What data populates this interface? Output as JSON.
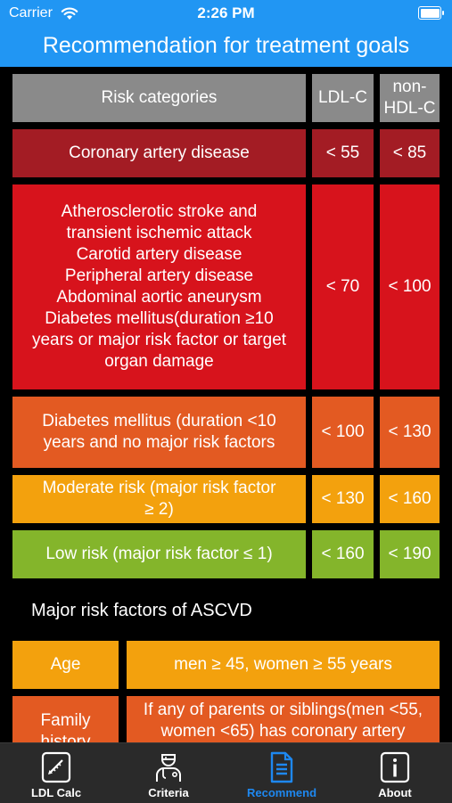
{
  "status_bar": {
    "carrier": "Carrier",
    "time": "2:26 PM"
  },
  "nav": {
    "title": "Recommendation for treatment goals"
  },
  "goals_table": {
    "headers": {
      "risk": "Risk categories",
      "ldl": "LDL-C",
      "nonhdl_line1": "non-",
      "nonhdl_line2": "HDL-C"
    },
    "rows": [
      {
        "category": "Coronary artery disease",
        "ldl": "< 55",
        "nonhdl": "< 85"
      },
      {
        "category_lines": [
          "Atherosclerotic stroke and",
          "transient ischemic attack",
          "Carotid artery disease",
          "Peripheral artery disease",
          "Abdominal aortic aneurysm",
          "Diabetes mellitus(duration ≥10",
          "years or major risk factor or target",
          "organ damage"
        ],
        "ldl": "< 70",
        "nonhdl": "< 100"
      },
      {
        "category_lines": [
          "Diabetes mellitus (duration <10",
          "years and no major risk factors"
        ],
        "ldl": "< 100",
        "nonhdl": "< 130"
      },
      {
        "category_lines": [
          "Moderate risk (major risk factor",
          "≥ 2)"
        ],
        "ldl": "< 130",
        "nonhdl": "< 160"
      },
      {
        "category": "Low risk (major risk factor ≤ 1)",
        "ldl": "< 160",
        "nonhdl": "< 190"
      }
    ]
  },
  "risk_factors": {
    "title": "Major risk factors of ASCVD",
    "rows": [
      {
        "label": "Age",
        "value": "men ≥ 45, women ≥ 55 years"
      },
      {
        "label_lines": [
          "Family",
          "history"
        ],
        "value_lines": [
          "If any of parents or siblings(men <55,",
          "women <65) has coronary artery"
        ]
      }
    ]
  },
  "tab_bar": {
    "tabs": [
      {
        "label": "LDL Calc",
        "icon": "calculator-icon"
      },
      {
        "label": "Criteria",
        "icon": "doctor-icon"
      },
      {
        "label": "Recommend",
        "icon": "document-icon"
      },
      {
        "label": "About",
        "icon": "info-icon"
      }
    ],
    "active": "Recommend",
    "active_color": "#1e88f0"
  }
}
